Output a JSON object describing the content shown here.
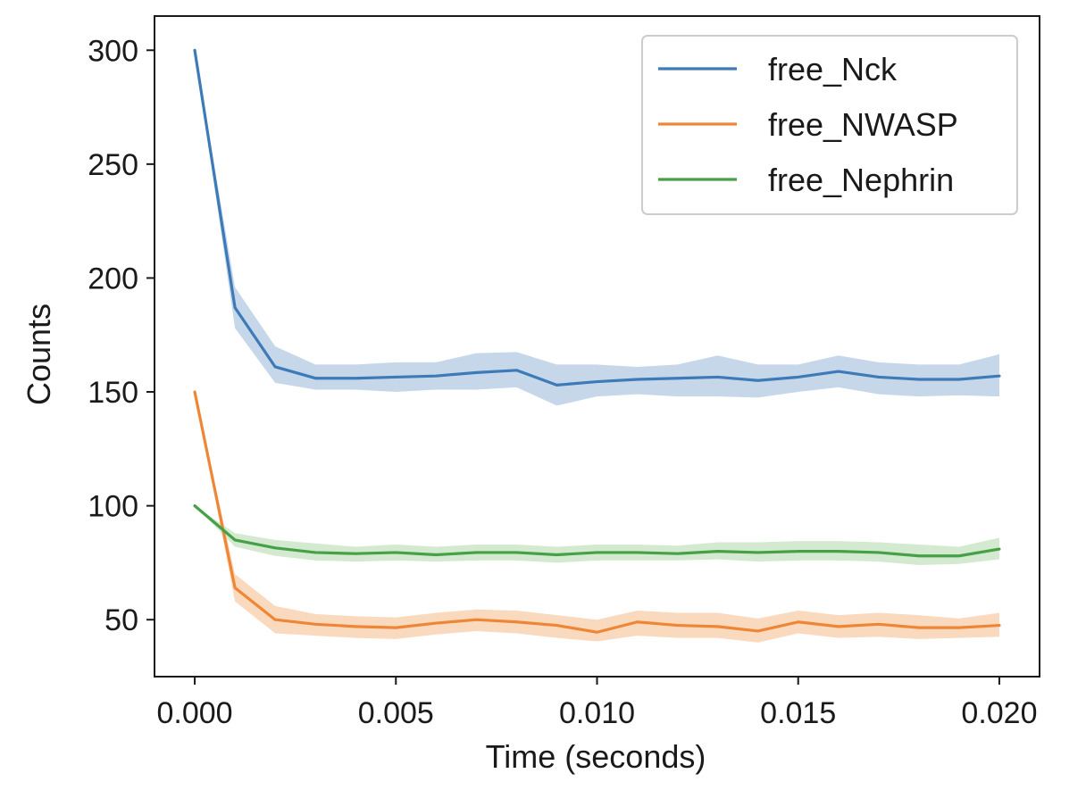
{
  "chart_data": {
    "type": "line",
    "title": "",
    "xlabel": "Time (seconds)",
    "ylabel": "Counts",
    "xlim": [
      -0.001,
      0.021
    ],
    "ylim": [
      25,
      315
    ],
    "grid": false,
    "legend_position": "top-right",
    "x_ticks": [
      0.0,
      0.005,
      0.01,
      0.015,
      0.02
    ],
    "x_tick_labels": [
      "0.000",
      "0.005",
      "0.010",
      "0.015",
      "0.020"
    ],
    "y_ticks": [
      50,
      100,
      150,
      200,
      250,
      300
    ],
    "y_tick_labels": [
      "50",
      "100",
      "150",
      "200",
      "250",
      "300"
    ],
    "x": [
      0.0,
      0.001,
      0.002,
      0.003,
      0.004,
      0.005,
      0.006,
      0.007,
      0.008,
      0.009,
      0.01,
      0.011,
      0.012,
      0.013,
      0.014,
      0.015,
      0.016,
      0.017,
      0.018,
      0.019,
      0.02
    ],
    "series": [
      {
        "name": "free_Nck",
        "color": "#3d7ab8",
        "band_color": "#bcd0e6",
        "values": [
          300,
          187,
          161,
          156,
          156,
          156.5,
          157,
          158.5,
          159.5,
          153,
          154.5,
          155.5,
          156,
          156.5,
          155,
          156.5,
          159,
          156.5,
          155.5,
          155.5,
          157
        ],
        "upper": [
          300,
          196,
          170,
          162,
          162,
          163,
          163,
          167,
          167.5,
          162,
          162,
          161,
          162,
          166,
          162,
          162,
          166,
          163,
          162,
          162,
          166.5
        ],
        "lower": [
          300,
          178,
          154,
          151,
          151,
          150,
          151,
          151,
          152,
          144,
          148,
          149,
          148,
          148,
          147.5,
          150,
          152,
          149,
          148,
          148.5,
          148
        ]
      },
      {
        "name": "free_NWASP",
        "color": "#ef8636",
        "band_color": "#f9d4b4",
        "values": [
          150,
          64,
          50,
          48,
          47,
          46.5,
          48.5,
          50,
          49,
          47.5,
          44.5,
          49,
          47.5,
          47,
          45,
          49,
          47,
          48,
          46.5,
          46.5,
          47.5
        ],
        "upper": [
          150,
          70,
          56,
          52.5,
          51.5,
          51,
          53,
          54.5,
          54,
          52,
          50,
          54,
          53,
          53,
          50.5,
          54,
          52,
          53,
          52,
          50.5,
          53
        ],
        "lower": [
          150,
          58,
          44,
          43,
          42,
          41.5,
          43.5,
          45,
          44,
          42,
          40.5,
          43,
          42,
          42,
          40,
          44,
          42,
          42.5,
          41.5,
          42,
          42.5
        ]
      },
      {
        "name": "free_Nephrin",
        "color": "#46a046",
        "band_color": "#cde6c8",
        "values": [
          100,
          85,
          81.5,
          79.5,
          79,
          79.5,
          78.5,
          79.5,
          79.5,
          78.5,
          79.5,
          79.5,
          79,
          80,
          79.5,
          80,
          80,
          79.5,
          78,
          78,
          81
        ],
        "upper": [
          100,
          88,
          85,
          83.5,
          82,
          83,
          82,
          83,
          83,
          82,
          83,
          83,
          82.5,
          84,
          84,
          84.5,
          84.5,
          84,
          83,
          82,
          86
        ],
        "lower": [
          100,
          82,
          78,
          76,
          75.5,
          76,
          75.5,
          76,
          76,
          75,
          76,
          76,
          76,
          76.5,
          75.5,
          76,
          76,
          75.5,
          74,
          74.5,
          76.5
        ]
      }
    ]
  }
}
